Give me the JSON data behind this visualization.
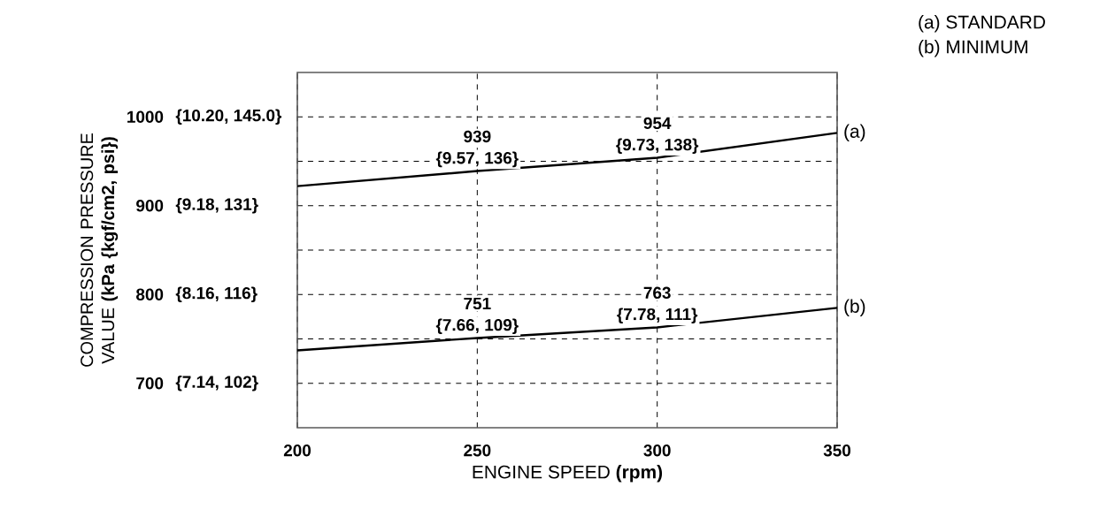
{
  "chart_data": {
    "type": "line",
    "xlabel": "ENGINE SPEED **(rpm)**",
    "ylabel": "COMPRESSION PRESSURE VALUE **(kPa {kgf/cm2, psi})**",
    "x": [
      200,
      250,
      300,
      350
    ],
    "series": [
      {
        "name": "(a)",
        "color": "#000000",
        "values": [
          922,
          939,
          954,
          982
        ],
        "value_labels": [
          null,
          "939",
          "954",
          null
        ]
      },
      {
        "name": "(b)",
        "color": "#000000",
        "values": [
          737,
          751,
          763,
          785
        ],
        "value_labels": [
          null,
          "751",
          "763",
          null
        ]
      }
    ],
    "xlim": [
      200,
      350
    ],
    "xticks": [
      200,
      250,
      300,
      350
    ],
    "ylim": [
      650,
      1050
    ],
    "yticks": [
      700,
      {
        "value": 750,
        "label": null
      },
      800,
      {
        "value": 850,
        "label": null
      },
      900,
      {
        "value": 950,
        "label": null
      },
      1000
    ],
    "grid": true,
    "marker": "none",
    "line_style": "solid",
    "legend": false,
    "annotations": [
      "(a)  STANDARD",
      "(b)  MINIMUM",
      "{7.14, 102}",
      "{8.16, 116}",
      "{9.18, 131}",
      "{10.20, 145.0}",
      "{9.57, 136}",
      "{9.73, 138}",
      "{7.66, 109}",
      "{7.78, 111}"
    ]
  }
}
